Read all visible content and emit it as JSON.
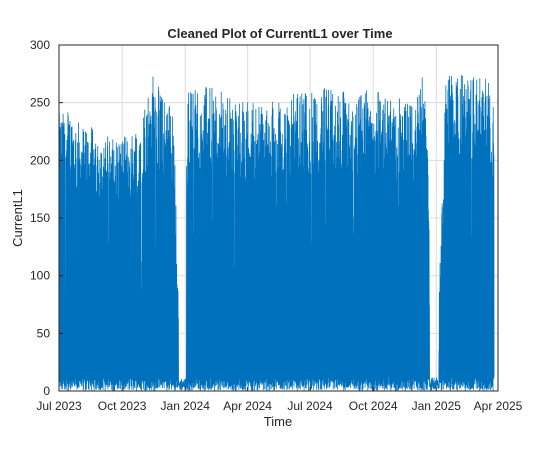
{
  "chart_data": {
    "type": "line",
    "title": "Cleaned Plot of CurrentL1 over Time",
    "xlabel": "Time",
    "ylabel": "CurrentL1",
    "xlim": [
      "2023-07-01",
      "2025-04-01"
    ],
    "ylim": [
      0,
      300
    ],
    "x_ticks": [
      "Jul 2023",
      "Oct 2023",
      "Jan 2024",
      "Apr 2024",
      "Jul 2024",
      "Oct 2024",
      "Jan 2025",
      "Apr 2025"
    ],
    "x_tick_dates": [
      "2023-07-01",
      "2023-10-01",
      "2024-01-01",
      "2024-04-01",
      "2024-07-01",
      "2024-10-01",
      "2025-01-01",
      "2025-04-01"
    ],
    "y_ticks": [
      0,
      50,
      100,
      150,
      200,
      250,
      300
    ],
    "grid": true,
    "legend": "none",
    "series": [
      {
        "color": "#0072BD",
        "x": [
          "2023-07-01",
          "2023-07-15",
          "2023-08-01",
          "2023-08-15",
          "2023-09-01",
          "2023-09-15",
          "2023-10-01",
          "2023-10-15",
          "2023-11-01",
          "2023-11-15",
          "2023-12-01",
          "2023-12-15",
          "2023-12-25",
          "2024-01-05",
          "2024-01-15",
          "2024-02-01",
          "2024-02-15",
          "2024-03-01",
          "2024-03-15",
          "2024-04-01",
          "2024-04-15",
          "2024-05-01",
          "2024-05-15",
          "2024-06-01",
          "2024-06-15",
          "2024-07-01",
          "2024-07-15",
          "2024-08-01",
          "2024-08-15",
          "2024-09-01",
          "2024-09-15",
          "2024-10-01",
          "2024-10-15",
          "2024-11-01",
          "2024-11-15",
          "2024-12-01",
          "2024-12-15",
          "2025-01-01",
          "2025-01-15",
          "2025-02-01",
          "2025-02-15",
          "2025-03-01",
          "2025-03-15",
          "2025-03-25"
        ],
        "y": [
          240,
          245,
          232,
          230,
          225,
          222,
          220,
          225,
          248,
          276,
          252,
          250,
          0,
          262,
          265,
          264,
          262,
          258,
          250,
          255,
          252,
          248,
          258,
          255,
          262,
          260,
          265,
          262,
          263,
          255,
          260,
          262,
          260,
          255,
          253,
          250,
          285,
          5,
          280,
          278,
          272,
          275,
          275,
          255
        ],
        "y_min": 0
      }
    ]
  }
}
